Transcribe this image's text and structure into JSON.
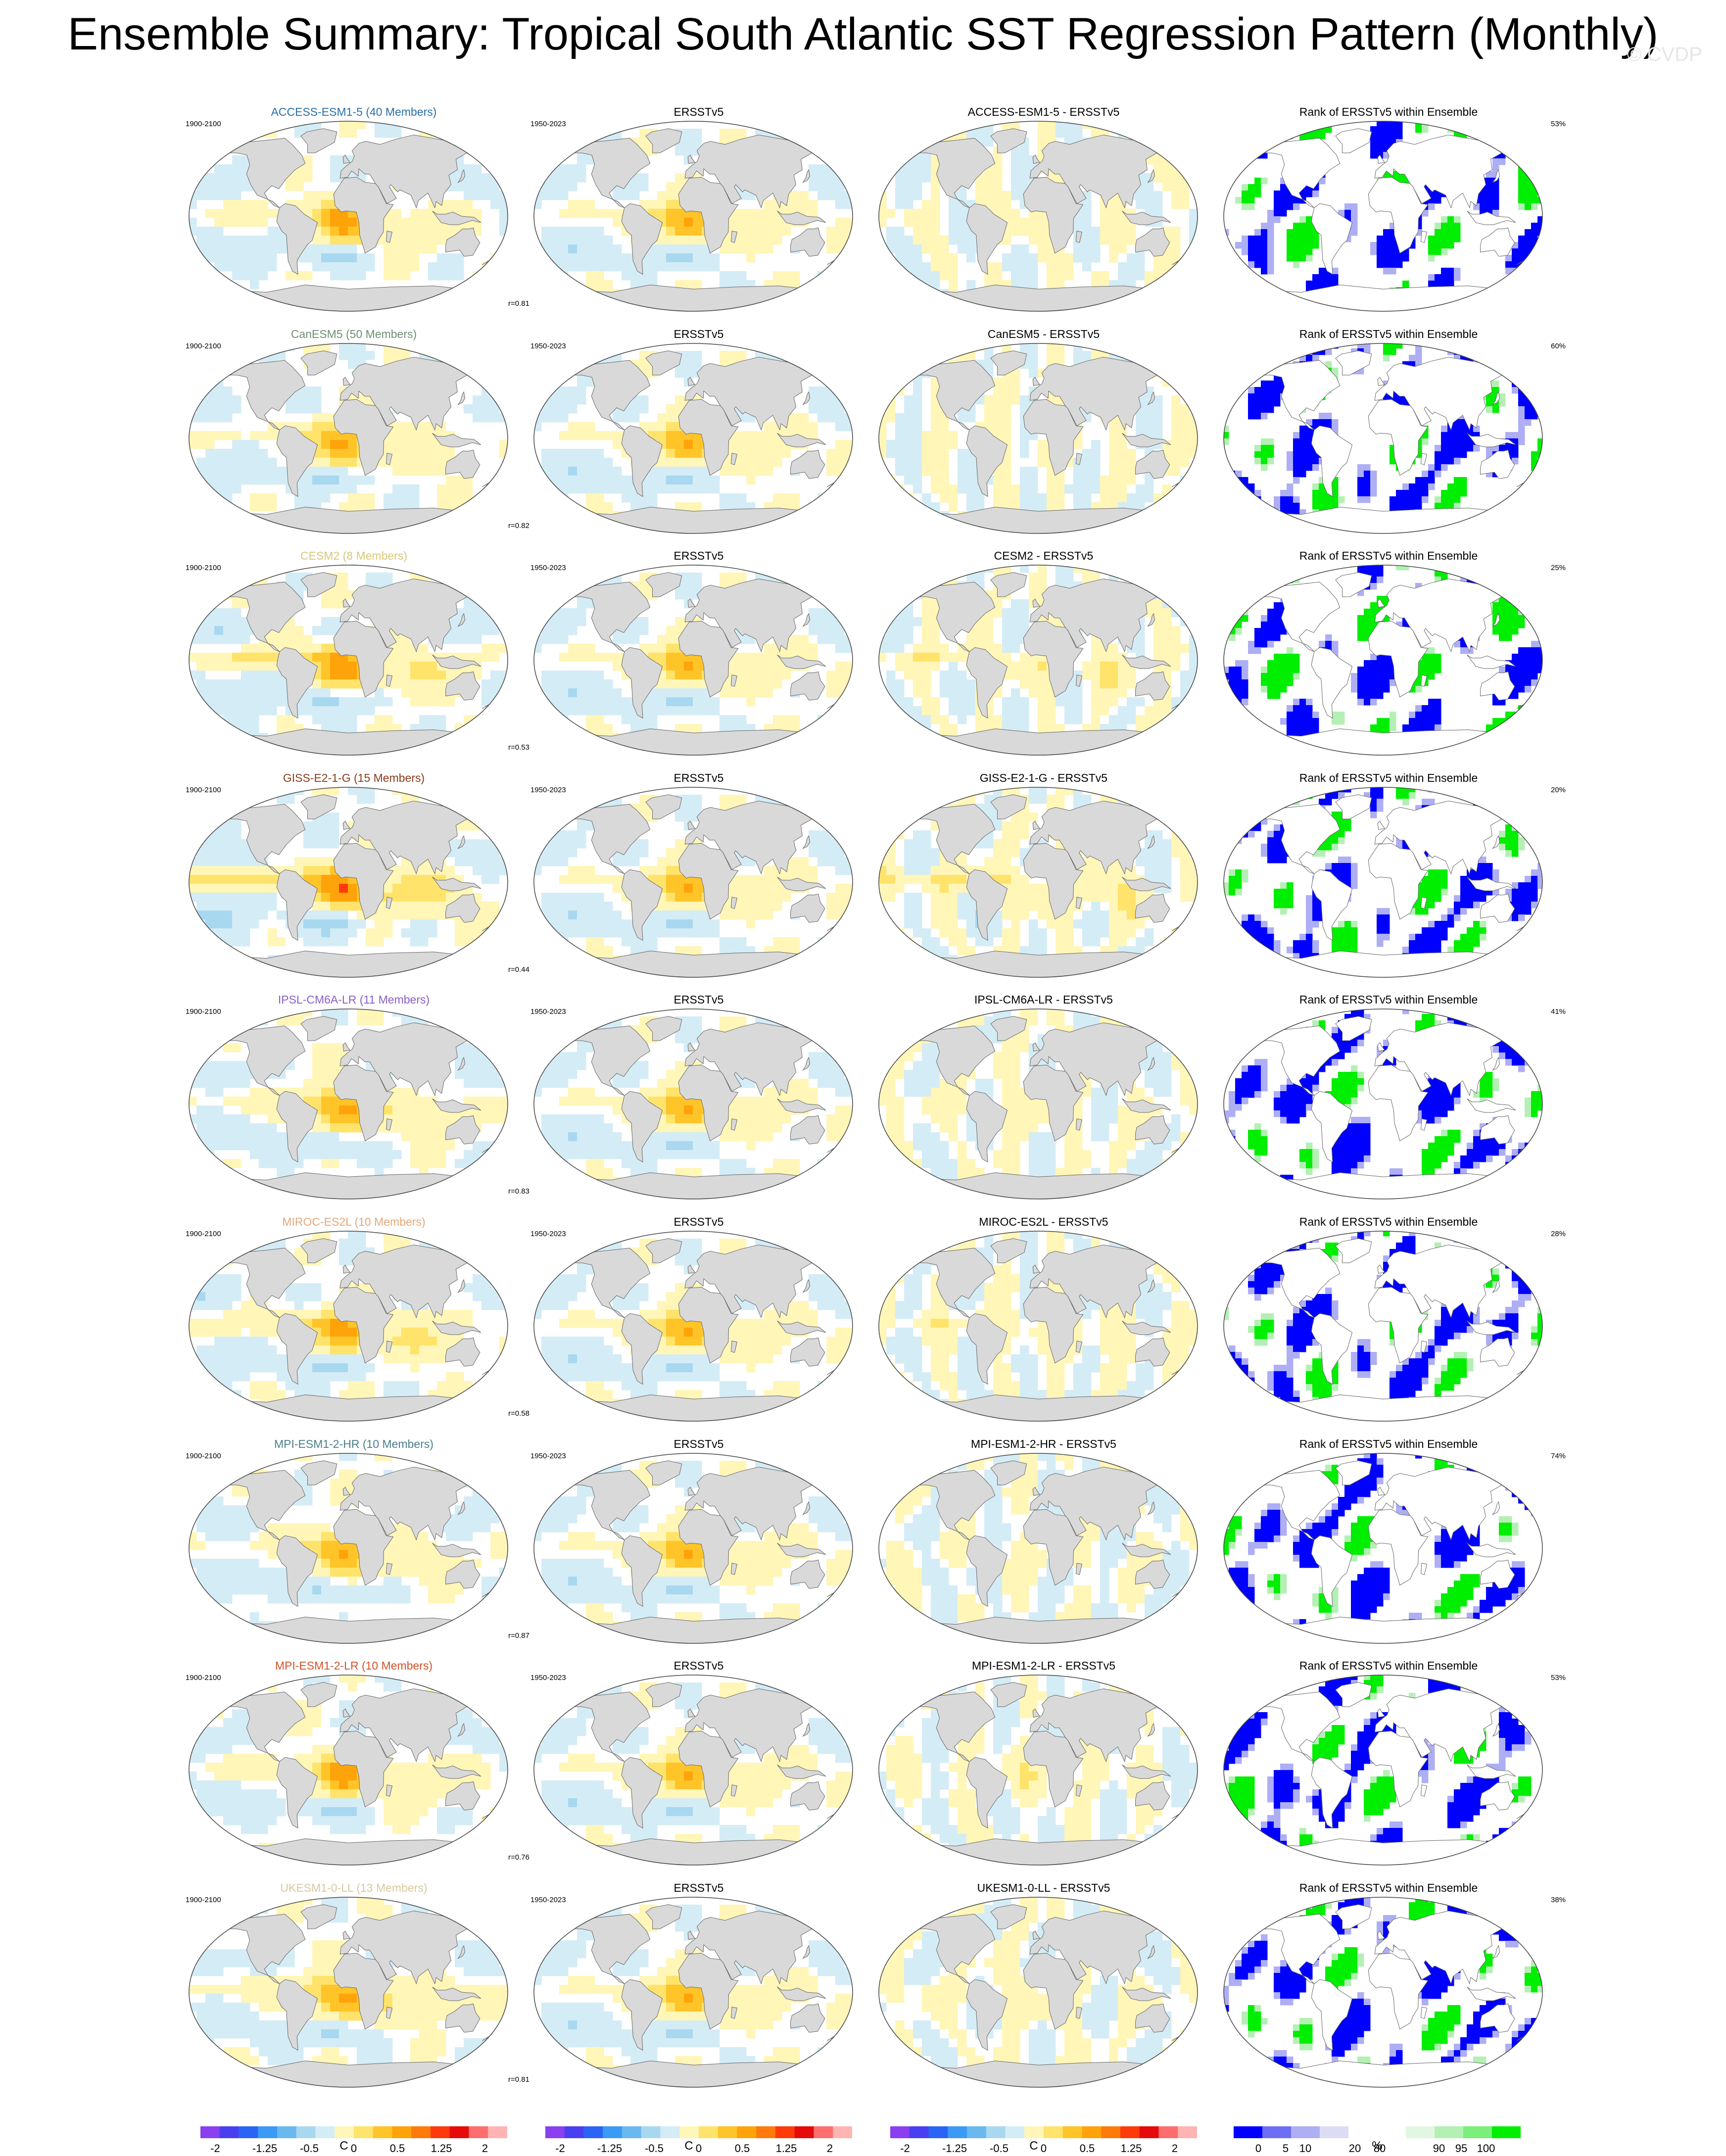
{
  "title": "Ensemble Summary: Tropical South Atlantic SST Regression Pattern (Monthly)",
  "watermark": "© CVDP",
  "obs_title": "ERSSTv5",
  "rank_title": "Rank of ERSSTv5 within Ensemble",
  "model_period": "1900-2100",
  "obs_period": "1950-2023",
  "colors": {
    "land": "#d9d9d9",
    "ocean_default": "#ffffff",
    "model_title_colors_note": "model titles are coloured per model"
  },
  "rows": [
    {
      "model": "ACCESS-ESM1-5",
      "members": "ACCESS-ESM1-5 (40 Members)",
      "diff_title": "ACCESS-ESM1-5 - ERSSTv5",
      "corr": "r=0.81",
      "pct": "53%",
      "title_color": "#2a6fa8",
      "strength": 0.9,
      "seed": 11
    },
    {
      "model": "CanESM5",
      "members": "CanESM5 (50 Members)",
      "diff_title": "CanESM5 - ERSSTv5",
      "corr": "r=0.82",
      "pct": "60%",
      "title_color": "#6e8f73",
      "strength": 0.85,
      "seed": 23
    },
    {
      "model": "CESM2",
      "members": "CESM2 (8 Members)",
      "diff_title": "CESM2 - ERSSTv5",
      "corr": "r=0.53",
      "pct": "25%",
      "title_color": "#d8c77a",
      "strength": 1.3,
      "seed": 37
    },
    {
      "model": "GISS-E2-1-G",
      "members": "GISS-E2-1-G (15 Members)",
      "diff_title": "GISS-E2-1-G - ERSSTv5",
      "corr": "r=0.44",
      "pct": "20%",
      "title_color": "#8b3a1a",
      "strength": 1.6,
      "seed": 41
    },
    {
      "model": "IPSL-CM6A-LR",
      "members": "IPSL-CM6A-LR (11 Members)",
      "diff_title": "IPSL-CM6A-LR - ERSSTv5",
      "corr": "r=0.83",
      "pct": "41%",
      "title_color": "#8a5fc7",
      "strength": 0.95,
      "seed": 53
    },
    {
      "model": "MIROC-ES2L",
      "members": "MIROC-ES2L (10 Members)",
      "diff_title": "MIROC-ES2L - ERSSTv5",
      "corr": "r=0.58",
      "pct": "28%",
      "title_color": "#e3a87a",
      "strength": 1.2,
      "seed": 67
    },
    {
      "model": "MPI-ESM1-2-HR",
      "members": "MPI-ESM1-2-HR (10 Members)",
      "diff_title": "MPI-ESM1-2-HR - ERSSTv5",
      "corr": "r=0.87",
      "pct": "74%",
      "title_color": "#4a7f8a",
      "strength": 0.8,
      "seed": 71
    },
    {
      "model": "MPI-ESM1-2-LR",
      "members": "MPI-ESM1-2-LR (10 Members)",
      "diff_title": "MPI-ESM1-2-LR - ERSSTv5",
      "corr": "r=0.76",
      "pct": "53%",
      "title_color": "#d0532a",
      "strength": 0.95,
      "seed": 83
    },
    {
      "model": "UKESM1-0-LL",
      "members": "UKESM1-0-LL (13 Members)",
      "diff_title": "UKESM1-0-LL - ERSSTv5",
      "corr": "r=0.81",
      "pct": "38%",
      "title_color": "#d8c9a0",
      "strength": 1.0,
      "seed": 97
    }
  ],
  "sst_colorbar": {
    "colors": [
      "#8a3ff0",
      "#4a3ff0",
      "#2a64f5",
      "#3a9af5",
      "#6ab8f0",
      "#a8d8f0",
      "#d4ecf5",
      "#fff6b8",
      "#ffe36a",
      "#ffc428",
      "#ffa30a",
      "#ff7a0a",
      "#ff3a0a",
      "#e60a0a",
      "#ff6e6e",
      "#ffb4b4"
    ],
    "tick_labels": [
      "-2",
      "-1.25",
      "-0.5",
      "0",
      "0.5",
      "1.25",
      "2"
    ],
    "unit": "C"
  },
  "rank_colorbar": {
    "colors": [
      "#0000ff",
      "#6e6ef5",
      "#aeaef5",
      "#dcdcf5",
      "#ffffff",
      "#ffffff",
      "#e2f7e2",
      "#b4f0b4",
      "#7af07a",
      "#00ee00"
    ],
    "tick_labels": [
      "0",
      "5",
      "10",
      "20",
      "80",
      "90",
      "95",
      "100"
    ],
    "unit": "%"
  }
}
